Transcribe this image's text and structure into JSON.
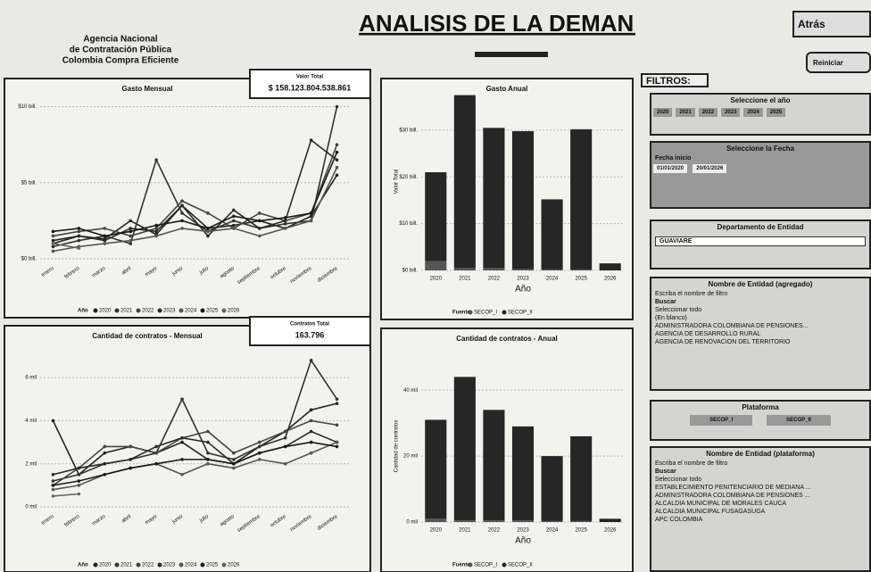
{
  "header": {
    "agency": [
      "Agencia Nacional",
      "de Contratación Pública",
      "Colombia Compra Eficiente"
    ],
    "title": "ANALISIS DE LA DEMANDA",
    "back": "Atrás",
    "reset": "Reiniciar"
  },
  "chart_data": [
    {
      "type": "line",
      "title": "Gasto Mensual",
      "card_label": "Valor Total",
      "card_value": "$ 158.123.804.538.861",
      "legend_title": "Año",
      "categories": [
        "enero",
        "febrero",
        "marzo",
        "abril",
        "mayo",
        "junio",
        "julio",
        "agosto",
        "septiembre",
        "octubre",
        "noviembre",
        "diciembre"
      ],
      "ylim": [
        0,
        10.5
      ],
      "yticks": [
        {
          "value": 0,
          "label": "$0 bill."
        },
        {
          "value": 5,
          "label": "$5 bill."
        },
        {
          "value": 10,
          "label": "$10 bill."
        }
      ],
      "series": [
        {
          "name": "2020",
          "color": "#222",
          "values": [
            1.2,
            1.5,
            1.3,
            2.5,
            1.6,
            3.5,
            2.0,
            2.2,
            2.5,
            2.0,
            2.8,
            5.5
          ]
        },
        {
          "name": "2021",
          "color": "#333",
          "values": [
            0.8,
            1.2,
            1.5,
            1.0,
            6.5,
            3.0,
            1.8,
            2.5,
            2.0,
            2.3,
            2.5,
            10
          ]
        },
        {
          "name": "2022",
          "color": "#444",
          "values": [
            1.5,
            1.8,
            2.0,
            1.5,
            2.0,
            3.8,
            3.0,
            2.0,
            3.0,
            2.5,
            3.0,
            7.5
          ]
        },
        {
          "name": "2023",
          "color": "#2a2a2a",
          "values": [
            1.0,
            1.5,
            1.2,
            2.0,
            1.8,
            3.5,
            1.5,
            3.2,
            2.0,
            2.5,
            7.8,
            6.5
          ]
        },
        {
          "name": "2024",
          "color": "#555",
          "values": [
            0.5,
            0.8,
            1.0,
            1.2,
            1.5,
            2.0,
            1.8,
            2.0,
            1.5,
            2.0,
            2.5,
            6.0
          ]
        },
        {
          "name": "2025",
          "color": "#1a1a1a",
          "values": [
            1.8,
            2.0,
            1.5,
            1.8,
            2.2,
            2.5,
            2.0,
            2.8,
            2.5,
            2.7,
            3.0,
            7.0
          ]
        },
        {
          "name": "2026",
          "color": "#666",
          "values": [
            1.0,
            0.7,
            null,
            null,
            null,
            null,
            null,
            null,
            null,
            null,
            null,
            null
          ]
        }
      ]
    },
    {
      "type": "bar",
      "title": "Gasto Anual",
      "ylabel": "Valor Total",
      "xlabel": "Año",
      "legend_title": "Fuente",
      "categories": [
        "2020",
        "2021",
        "2022",
        "2023",
        "2024",
        "2025",
        "2026"
      ],
      "ylim": [
        0,
        38
      ],
      "yticks": [
        {
          "value": 0,
          "label": "$0 bill."
        },
        {
          "value": 10,
          "label": "$10 bill."
        },
        {
          "value": 20,
          "label": "$20 bill."
        },
        {
          "value": 30,
          "label": "$30 bill."
        }
      ],
      "series": [
        {
          "name": "SECOP_I",
          "color": "#555",
          "values": [
            2,
            0.5,
            0.5,
            0.3,
            0.2,
            0.2,
            0
          ]
        },
        {
          "name": "SECOP_II",
          "color": "#262626",
          "values": [
            19,
            37,
            30,
            29.5,
            15,
            30,
            1.5
          ]
        }
      ]
    },
    {
      "type": "line",
      "title": "Cantidad de contratos - Mensual",
      "card_label": "Contratos Total",
      "card_value": "163.796",
      "legend_title": "Año",
      "categories": [
        "enero",
        "febrero",
        "marzo",
        "abril",
        "mayo",
        "junio",
        "julio",
        "agosto",
        "septiembre",
        "octubre",
        "noviembre",
        "diciembre"
      ],
      "ylim": [
        0,
        7
      ],
      "yticks": [
        {
          "value": 0,
          "label": "0 mil"
        },
        {
          "value": 2,
          "label": "2 mil"
        },
        {
          "value": 4,
          "label": "4 mil"
        },
        {
          "value": 6,
          "label": "6 mil"
        }
      ],
      "series": [
        {
          "name": "2020",
          "color": "#222",
          "values": [
            4,
            1.5,
            2.5,
            2.8,
            2.5,
            3.0,
            2.2,
            2.0,
            2.8,
            3.5,
            4.5,
            4.8
          ]
        },
        {
          "name": "2021",
          "color": "#333",
          "values": [
            1.2,
            1.5,
            2.0,
            2.2,
            2.5,
            5.0,
            2.5,
            2.2,
            2.8,
            3.2,
            6.8,
            5.0
          ]
        },
        {
          "name": "2022",
          "color": "#444",
          "values": [
            1.0,
            1.8,
            2.8,
            2.8,
            2.5,
            3.2,
            3.5,
            2.5,
            3.0,
            3.5,
            4.0,
            3.8
          ]
        },
        {
          "name": "2023",
          "color": "#2a2a2a",
          "values": [
            1.5,
            1.8,
            2.0,
            2.2,
            2.8,
            3.2,
            3.0,
            2.0,
            2.5,
            2.8,
            3.5,
            3.0
          ]
        },
        {
          "name": "2024",
          "color": "#555",
          "values": [
            0.8,
            1.0,
            1.5,
            1.8,
            2.0,
            1.5,
            2.0,
            1.8,
            2.2,
            2.0,
            2.5,
            3.0
          ]
        },
        {
          "name": "2025",
          "color": "#1a1a1a",
          "values": [
            1.0,
            1.2,
            1.5,
            1.8,
            2.0,
            2.2,
            2.2,
            2.0,
            2.5,
            2.8,
            3.0,
            2.8
          ]
        },
        {
          "name": "2026",
          "color": "#666",
          "values": [
            0.5,
            0.6,
            null,
            null,
            null,
            null,
            null,
            null,
            null,
            null,
            null,
            null
          ]
        }
      ]
    },
    {
      "type": "bar",
      "title": "Cantidad de contratos - Anual",
      "ylabel": "Cantidad de contratos",
      "xlabel": "Año",
      "legend_title": "Fuente",
      "categories": [
        "2020",
        "2021",
        "2022",
        "2023",
        "2024",
        "2025",
        "2026"
      ],
      "ylim": [
        0,
        46
      ],
      "yticks": [
        {
          "value": 0,
          "label": "0 mil"
        },
        {
          "value": 20,
          "label": "20 mil"
        },
        {
          "value": 40,
          "label": "40 mil"
        }
      ],
      "series": [
        {
          "name": "SECOP_I",
          "color": "#555",
          "values": [
            1,
            0.5,
            0.5,
            0.5,
            0.3,
            0.3,
            0
          ]
        },
        {
          "name": "SECOP_II",
          "color": "#262626",
          "values": [
            30,
            43.5,
            33.5,
            28.5,
            19.7,
            25.7,
            1
          ]
        }
      ]
    }
  ],
  "filters": {
    "title": "FILTROS:",
    "year_title": "Seleccione el año",
    "years": [
      "2020",
      "2021",
      "2022",
      "2023",
      "2024",
      "2025"
    ],
    "date_title": "Seleccione la Fecha",
    "date_label": "Fecha inicio",
    "date_from": "01/01/2020",
    "date_to": "20/01/2026",
    "dept_title": "Departamento de Entidad",
    "dept_value": "GUAVIARE",
    "entity_title": "Nombre de Entidad (agregado)",
    "entity_hint": "Escriba el nombre de filtro",
    "search": "Buscar",
    "entity_items": [
      "Seleccionar todo",
      "(En blanco)",
      "ADMINISTRADORA COLOMBIANA DE PENSIONES...",
      "AGENCIA DE DESARROLLO RURAL",
      "AGENCIA DE RENOVACION DEL TERRITORIO"
    ],
    "platform_title": "Plataforma",
    "platforms": [
      "SECOP_I",
      "SECOP_II"
    ],
    "entity2_title": "Nombre de Entidad (plataforma)",
    "entity2_hint": "Escriba el nombre de filtro",
    "search2": "Buscar",
    "entity2_items": [
      "Seleccionar todo",
      "ESTABLECIMIENTO PENITENCIARIO DE MEDIANA ...",
      "ADMINISTRADORA COLOMBIANA DE PENSIONES ...",
      "ALCALDIA MUNICIPAL DE MORALES CAUCA",
      "ALCALDIA MUNICIPAL FUSAGASUGA",
      "APC COLOMBIA"
    ]
  }
}
